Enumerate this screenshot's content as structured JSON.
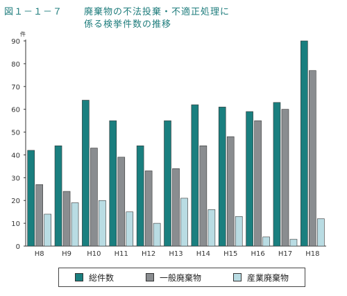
{
  "figure": {
    "label": "図１－１－７",
    "title_line1": "廃棄物の不法投棄・不適正処理に",
    "title_line2": "係る検挙件数の推移"
  },
  "chart_data": {
    "type": "bar",
    "categories": [
      "H8",
      "H9",
      "H10",
      "H11",
      "H12",
      "H13",
      "H14",
      "H15",
      "H16",
      "H17",
      "H18"
    ],
    "series": [
      {
        "name": "総件数",
        "color": "#1a7f7f",
        "values": [
          42,
          44,
          64,
          55,
          44,
          55,
          62,
          61,
          59,
          63,
          90
        ]
      },
      {
        "name": "一般廃棄物",
        "color": "#8a8d90",
        "values": [
          27,
          24,
          43,
          39,
          33,
          34,
          44,
          48,
          55,
          60,
          77
        ]
      },
      {
        "name": "産業廃棄物",
        "color": "#b9dce3",
        "values": [
          14,
          19,
          20,
          15,
          10,
          21,
          16,
          13,
          4,
          3,
          12
        ]
      }
    ],
    "y_ticks": [
      "0",
      "10",
      "20",
      "30",
      "40",
      "50",
      "60",
      "70",
      "80",
      "90"
    ],
    "ylim": [
      0,
      90
    ],
    "y_unit": "件",
    "grid": false,
    "legend_position": "bottom"
  }
}
